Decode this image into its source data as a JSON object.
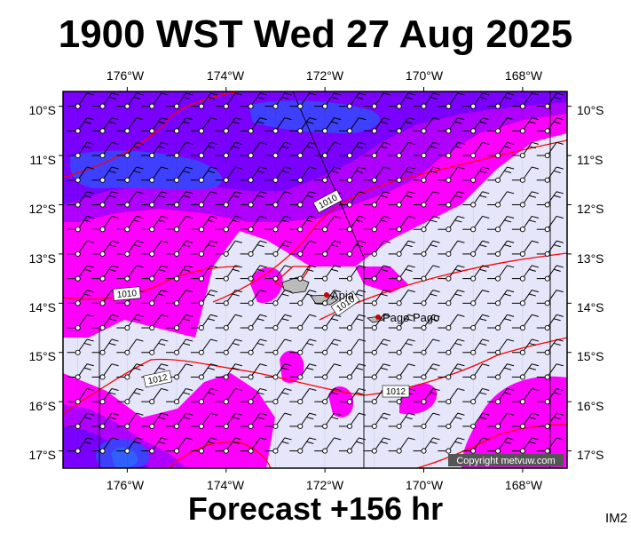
{
  "title": "1900 WST Wed 27 Aug 2025",
  "forecast": "Forecast +156 hr",
  "image_code": "IM2",
  "copyright": "Copyright metvuw.com",
  "lon_labels": [
    "176°W",
    "174°W",
    "172°W",
    "170°W",
    "168°W"
  ],
  "lat_labels": [
    "10°S",
    "11°S",
    "12°S",
    "13°S",
    "14°S",
    "15°S",
    "16°S",
    "17°S"
  ],
  "places": [
    {
      "name": "Apia",
      "lon": -171.76,
      "lat": -13.83
    },
    {
      "name": "Pago Pago",
      "lon": -170.7,
      "lat": -14.27
    }
  ],
  "isobar_labels": [
    "1010",
    "1010",
    "1010",
    "1012",
    "1012"
  ],
  "colors": {
    "calm": "#e6e6fa",
    "light": "#ff00ff",
    "moderate": "#b000ff",
    "strong": "#7a00ff",
    "very_strong": "#3f3fff",
    "isobar": "#ff0000",
    "grid": "#000000"
  },
  "map_extent": {
    "lon_min": -177.3,
    "lon_max": -167.1,
    "lat_min": -17.35,
    "lat_max": -9.7
  }
}
